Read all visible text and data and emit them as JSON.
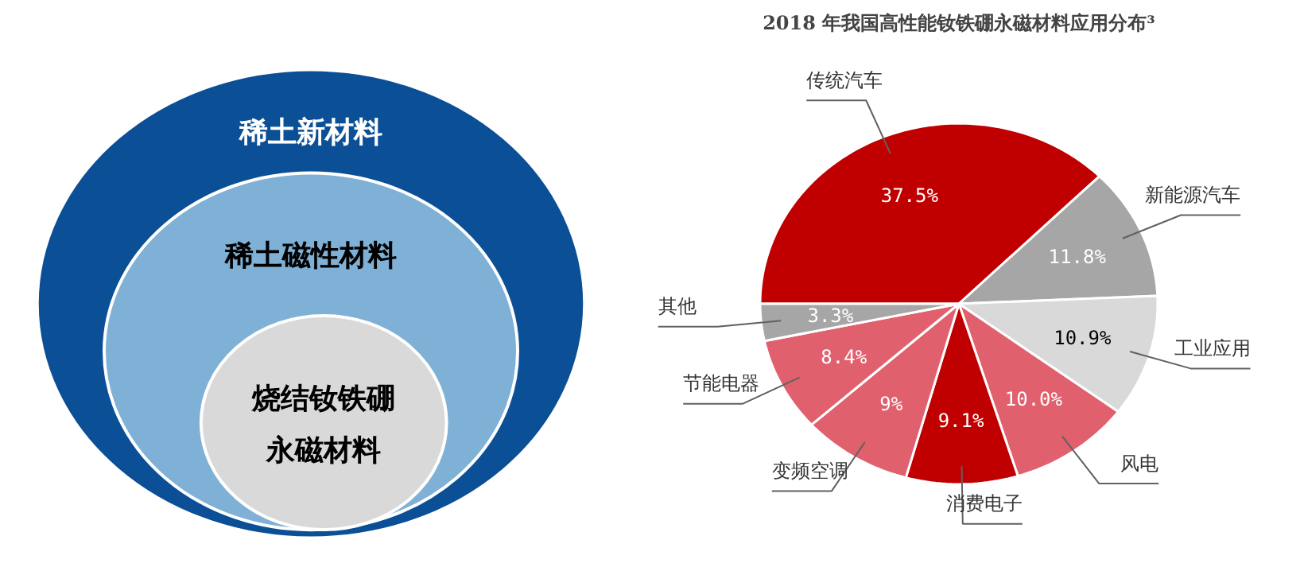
{
  "chart_data": [
    {
      "type": "other",
      "annotations": [
        "稀土新材料",
        "稀土磁性材料",
        "烧结钕铁硼",
        "永磁材料"
      ]
    },
    {
      "type": "pie",
      "title": "2018 年我国高性能钕铁硼永磁材料应用分布³",
      "categories": [
        "传统汽车",
        "新能源汽车",
        "工业应用",
        "风电",
        "消费电子",
        "变频空调",
        "节能电器",
        "其他"
      ],
      "values": [
        37.5,
        11.8,
        10.9,
        10.0,
        9.1,
        9,
        8.4,
        3.3
      ],
      "colors": [
        "#c00000",
        "#a6a6a6",
        "#d9d9d9",
        "#e0606e",
        "#c00000",
        "#e0606e",
        "#e0606e",
        "#a6a6a6"
      ],
      "value_labels": [
        "37.5%",
        "11.8%",
        "10.9%",
        "10.0%",
        "9.1%",
        "9%",
        "8.4%",
        "3.3%"
      ]
    }
  ]
}
